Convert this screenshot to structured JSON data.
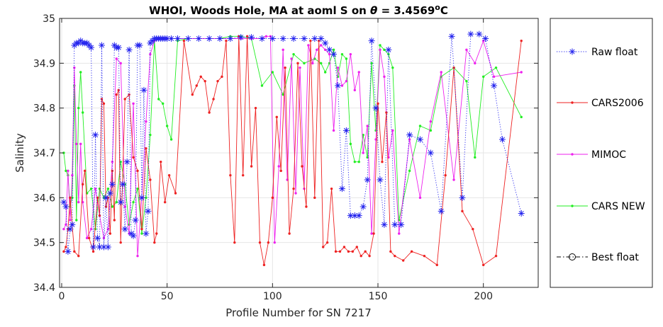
{
  "chart_data": {
    "type": "line",
    "title": {
      "prefix": "WHOI, Woods Hole, MA at aoml S on ",
      "symbol": "θ",
      "value": " = 3.4569",
      "sup": "o",
      "unit": "C"
    },
    "xlabel": "Profile Number for SN 7217",
    "ylabel": "Salinity",
    "xlim": [
      -1,
      226
    ],
    "ylim": [
      34.4,
      35.0
    ],
    "xticks": [
      0,
      50,
      100,
      150,
      200
    ],
    "yticks": [
      34.4,
      34.5,
      34.6,
      34.7,
      34.8,
      34.9,
      35.0
    ],
    "ytick_labels": [
      "34.4",
      "34.5",
      "34.6",
      "34.7",
      "34.8",
      "34.9",
      "35"
    ],
    "grid": true,
    "legend_position": "outside-right",
    "series": [
      {
        "name": "Raw float",
        "color": "#2222ee",
        "style": "dotted",
        "marker": "asterisk",
        "x": [
          1,
          2,
          3,
          4,
          5,
          6,
          7,
          8,
          9,
          10,
          11,
          12,
          13,
          14,
          15,
          16,
          17,
          18,
          19,
          20,
          21,
          22,
          23,
          24,
          25,
          26,
          27,
          28,
          29,
          30,
          31,
          32,
          33,
          34,
          35,
          36,
          37,
          38,
          39,
          40,
          41,
          42,
          43,
          44,
          45,
          46,
          47,
          48,
          49,
          50,
          52,
          55,
          60,
          65,
          70,
          75,
          80,
          85,
          90,
          95,
          100,
          105,
          110,
          115,
          120,
          123,
          125,
          127,
          129,
          131,
          133,
          135,
          137,
          139,
          141,
          143,
          145,
          147,
          149,
          151,
          153,
          155,
          158,
          161,
          165,
          170,
          175,
          180,
          185,
          190,
          194,
          198,
          201,
          205,
          209,
          218
        ],
        "y": [
          34.59,
          34.58,
          34.48,
          34.53,
          34.54,
          34.94,
          34.945,
          34.945,
          34.95,
          34.945,
          34.945,
          34.945,
          34.94,
          34.935,
          34.49,
          34.74,
          34.51,
          34.49,
          34.94,
          34.49,
          34.6,
          34.49,
          34.61,
          34.63,
          34.94,
          34.935,
          34.935,
          34.59,
          34.63,
          34.53,
          34.68,
          34.93,
          34.52,
          34.515,
          34.55,
          34.94,
          34.94,
          34.6,
          34.84,
          34.52,
          34.57,
          34.945,
          34.95,
          34.955,
          34.955,
          34.955,
          34.955,
          34.955,
          34.955,
          34.955,
          34.955,
          34.955,
          34.955,
          34.955,
          34.955,
          34.955,
          34.955,
          34.958,
          34.958,
          34.955,
          34.955,
          34.955,
          34.955,
          34.955,
          34.955,
          34.955,
          34.945,
          34.93,
          34.92,
          34.85,
          34.62,
          34.75,
          34.56,
          34.56,
          34.56,
          34.58,
          34.64,
          34.95,
          34.8,
          34.64,
          34.54,
          34.93,
          34.54,
          34.54,
          34.74,
          34.73,
          34.7,
          34.57,
          34.96,
          34.6,
          34.965,
          34.965,
          34.955,
          34.85,
          34.73,
          34.565
        ]
      },
      {
        "name": "CARS2006",
        "color": "#ee2222",
        "style": "solid",
        "marker": "dot",
        "x": [
          1,
          2,
          3,
          4,
          5,
          6,
          8,
          10,
          11,
          13,
          15,
          17,
          18,
          19,
          20,
          21,
          22,
          23,
          24,
          25,
          26,
          27,
          28,
          30,
          32,
          34,
          36,
          38,
          40,
          42,
          44,
          45,
          47,
          49,
          51,
          54,
          58,
          62,
          64,
          66,
          68,
          70,
          72,
          74,
          76,
          78,
          80,
          82,
          84,
          86,
          88,
          90,
          92,
          94,
          96,
          98,
          100,
          102,
          104,
          106,
          108,
          110,
          112,
          114,
          116,
          118,
          120,
          122,
          124,
          126,
          128,
          130,
          132,
          134,
          136,
          138,
          140,
          142,
          144,
          146,
          148,
          150,
          152,
          154,
          156,
          158,
          162,
          166,
          172,
          178,
          182,
          186,
          190,
          195,
          200,
          206,
          218
        ],
        "y": [
          34.48,
          34.49,
          34.53,
          34.6,
          34.54,
          34.48,
          34.47,
          34.63,
          34.66,
          34.51,
          34.48,
          34.6,
          34.56,
          34.82,
          34.81,
          34.58,
          34.6,
          34.52,
          34.66,
          34.55,
          34.83,
          34.84,
          34.5,
          34.82,
          34.83,
          34.69,
          34.66,
          34.53,
          34.71,
          34.64,
          34.5,
          34.52,
          34.68,
          34.59,
          34.65,
          34.61,
          34.95,
          34.83,
          34.85,
          34.87,
          34.86,
          34.79,
          34.82,
          34.86,
          34.87,
          34.95,
          34.65,
          34.5,
          34.96,
          34.65,
          34.96,
          34.67,
          34.8,
          34.5,
          34.45,
          34.5,
          34.6,
          34.78,
          34.66,
          34.89,
          34.52,
          34.62,
          34.9,
          34.67,
          34.58,
          34.95,
          34.6,
          34.95,
          34.49,
          34.5,
          34.62,
          34.48,
          34.48,
          34.49,
          34.48,
          34.48,
          34.49,
          34.47,
          34.48,
          34.47,
          34.52,
          34.81,
          34.68,
          34.79,
          34.48,
          34.47,
          34.46,
          34.48,
          34.47,
          34.45,
          34.65,
          34.89,
          34.57,
          34.53,
          34.45,
          34.47,
          34.95
        ]
      },
      {
        "name": "MIMOC",
        "color": "#ee22ee",
        "style": "solid",
        "marker": "dot",
        "x": [
          1,
          2,
          3,
          4,
          5,
          6,
          7,
          8,
          9,
          10,
          12,
          14,
          16,
          18,
          20,
          22,
          24,
          26,
          28,
          30,
          32,
          34,
          36,
          38,
          40,
          42,
          44,
          46,
          48,
          50,
          52,
          55,
          60,
          65,
          70,
          75,
          80,
          85,
          90,
          95,
          97,
          99,
          101,
          103,
          105,
          107,
          109,
          111,
          113,
          115,
          117,
          119,
          121,
          123,
          125,
          127,
          129,
          131,
          133,
          135,
          137,
          139,
          141,
          143,
          145,
          147,
          149,
          151,
          153,
          155,
          157,
          160,
          165,
          170,
          175,
          180,
          186,
          192,
          196,
          200,
          205,
          218
        ],
        "y": [
          34.53,
          34.54,
          34.66,
          34.55,
          34.65,
          34.89,
          34.72,
          34.59,
          34.72,
          34.59,
          34.51,
          34.53,
          34.62,
          34.56,
          34.51,
          34.53,
          34.68,
          34.91,
          34.9,
          34.58,
          34.52,
          34.81,
          34.47,
          34.6,
          34.77,
          34.92,
          34.95,
          34.955,
          34.955,
          34.955,
          34.955,
          34.955,
          34.955,
          34.955,
          34.955,
          34.955,
          34.955,
          34.955,
          34.955,
          34.955,
          34.96,
          34.96,
          34.5,
          34.67,
          34.93,
          34.64,
          34.91,
          34.61,
          34.89,
          34.62,
          34.94,
          34.9,
          34.93,
          34.94,
          34.93,
          34.92,
          34.75,
          34.89,
          34.85,
          34.86,
          34.92,
          34.84,
          34.88,
          34.7,
          34.76,
          34.52,
          34.73,
          34.93,
          34.87,
          34.69,
          34.75,
          34.52,
          34.73,
          34.6,
          34.77,
          34.88,
          34.64,
          34.93,
          34.9,
          34.95,
          34.87,
          34.88
        ]
      },
      {
        "name": "CARS NEW",
        "color": "#22ee22",
        "style": "solid",
        "marker": "dot",
        "x": [
          1,
          2,
          3,
          4,
          5,
          6,
          7,
          8,
          9,
          10,
          12,
          14,
          16,
          18,
          20,
          22,
          24,
          26,
          28,
          30,
          32,
          34,
          36,
          38,
          40,
          42,
          44,
          46,
          48,
          50,
          52,
          55,
          60,
          65,
          70,
          75,
          80,
          85,
          90,
          95,
          100,
          105,
          110,
          115,
          120,
          123,
          125,
          127,
          129,
          131,
          133,
          135,
          137,
          139,
          141,
          143,
          145,
          147,
          149,
          151,
          153,
          155,
          157,
          160,
          165,
          170,
          175,
          180,
          186,
          192,
          196,
          200,
          206,
          218
        ],
        "y": [
          34.7,
          34.66,
          34.65,
          34.58,
          34.6,
          34.85,
          34.55,
          34.8,
          34.88,
          34.79,
          34.61,
          34.62,
          34.53,
          34.62,
          34.6,
          34.62,
          34.58,
          34.59,
          34.68,
          34.63,
          34.54,
          34.59,
          34.62,
          34.52,
          34.6,
          34.74,
          34.95,
          34.82,
          34.81,
          34.76,
          34.73,
          34.95,
          34.955,
          34.955,
          34.955,
          34.955,
          34.96,
          34.96,
          34.955,
          34.85,
          34.88,
          34.83,
          34.92,
          34.9,
          34.91,
          34.9,
          34.88,
          34.9,
          34.93,
          34.87,
          34.92,
          34.91,
          34.72,
          34.68,
          34.68,
          34.74,
          34.69,
          34.9,
          34.75,
          34.94,
          34.93,
          34.92,
          34.89,
          34.55,
          34.66,
          34.76,
          34.75,
          34.87,
          34.89,
          34.86,
          34.69,
          34.87,
          34.89,
          34.78
        ]
      },
      {
        "name": "Best float",
        "color": "#000000",
        "style": "dashdot",
        "marker": "circle",
        "x": [],
        "y": []
      }
    ]
  }
}
